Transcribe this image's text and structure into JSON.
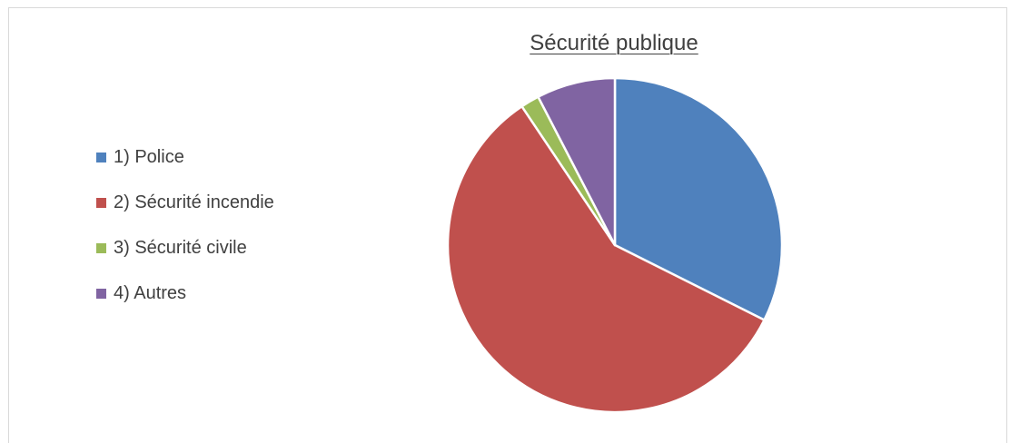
{
  "chart_data": {
    "type": "pie",
    "title": "Sécurité publique",
    "categories": [
      "1) Police",
      "2) Sécurité incendie",
      "3) Sécurité civile",
      "4) Autres"
    ],
    "values": [
      32.4,
      58.2,
      1.8,
      7.6
    ],
    "colors": [
      "#4f81bd",
      "#c0504d",
      "#9bbb59",
      "#8064a2"
    ],
    "legend_position": "left",
    "start_angle": "top",
    "direction": "clockwise"
  }
}
